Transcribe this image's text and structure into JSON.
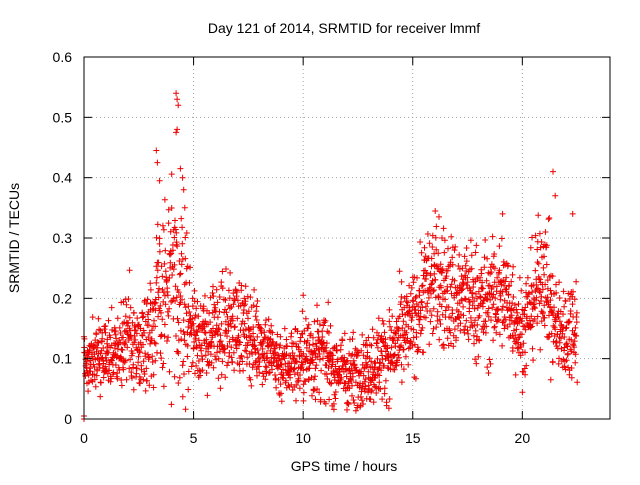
{
  "chart_data": {
    "type": "scatter",
    "title": "Day 121 of 2014, SRMTID for receiver lmmf",
    "xlabel": "GPS time / hours",
    "ylabel": "SRMTID / TECUs",
    "xlim": [
      0,
      24
    ],
    "ylim": [
      0,
      0.6
    ],
    "xticks": [
      0,
      5,
      10,
      15,
      20
    ],
    "xtick_labels": [
      "0",
      "5",
      "10",
      "15",
      "20"
    ],
    "yticks": [
      0,
      0.1,
      0.2,
      0.3,
      0.4,
      0.5,
      0.6
    ],
    "ytick_labels": [
      "0",
      "0.1",
      "0.2",
      "0.3",
      "0.4",
      "0.5",
      "0.6"
    ],
    "grid": true,
    "marker": "plus",
    "color": "#ee0000",
    "series": [
      {
        "name": "SRMTID",
        "trend_x": [
          0,
          0.5,
          1,
          1.5,
          2,
          2.5,
          3,
          3.5,
          4,
          4.5,
          5,
          5.5,
          6,
          6.5,
          7,
          7.5,
          8,
          8.5,
          9,
          9.5,
          10,
          10.5,
          11,
          11.5,
          12,
          12.5,
          13,
          13.5,
          14,
          14.5,
          15,
          15.5,
          16,
          16.5,
          17,
          17.5,
          18,
          18.5,
          19,
          19.5,
          20,
          20.5,
          21,
          21.5,
          22,
          22.5
        ],
        "trend_y": [
          0.1,
          0.1,
          0.105,
          0.11,
          0.13,
          0.12,
          0.15,
          0.2,
          0.21,
          0.19,
          0.15,
          0.13,
          0.14,
          0.15,
          0.16,
          0.14,
          0.13,
          0.11,
          0.09,
          0.095,
          0.1,
          0.11,
          0.1,
          0.085,
          0.08,
          0.08,
          0.085,
          0.1,
          0.11,
          0.13,
          0.16,
          0.21,
          0.23,
          0.21,
          0.2,
          0.2,
          0.19,
          0.19,
          0.21,
          0.19,
          0.14,
          0.2,
          0.25,
          0.15,
          0.14,
          0.17
        ],
        "spread": [
          0.028,
          0.028,
          0.03,
          0.035,
          0.045,
          0.03,
          0.045,
          0.07,
          0.09,
          0.07,
          0.045,
          0.035,
          0.04,
          0.04,
          0.04,
          0.035,
          0.035,
          0.03,
          0.03,
          0.03,
          0.035,
          0.04,
          0.035,
          0.03,
          0.03,
          0.028,
          0.03,
          0.035,
          0.035,
          0.04,
          0.04,
          0.05,
          0.05,
          0.05,
          0.05,
          0.045,
          0.05,
          0.045,
          0.05,
          0.045,
          0.04,
          0.045,
          0.05,
          0.04,
          0.04,
          0.045
        ],
        "highlights": [
          {
            "x": 0.0,
            "y": 0.0
          },
          {
            "x": 0.0,
            "y": 0.005
          },
          {
            "x": 4.2,
            "y": 0.54
          },
          {
            "x": 4.25,
            "y": 0.53
          },
          {
            "x": 4.3,
            "y": 0.52
          },
          {
            "x": 4.2,
            "y": 0.475
          },
          {
            "x": 4.25,
            "y": 0.48
          },
          {
            "x": 3.3,
            "y": 0.445
          },
          {
            "x": 3.35,
            "y": 0.425
          },
          {
            "x": 3.45,
            "y": 0.395
          },
          {
            "x": 4.4,
            "y": 0.415
          },
          {
            "x": 4.5,
            "y": 0.4
          },
          {
            "x": 4.55,
            "y": 0.38
          },
          {
            "x": 4.6,
            "y": 0.35
          },
          {
            "x": 21.4,
            "y": 0.41
          },
          {
            "x": 21.5,
            "y": 0.37
          },
          {
            "x": 12.0,
            "y": 0.015
          },
          {
            "x": 11.4,
            "y": 0.025
          },
          {
            "x": 10.0,
            "y": 0.205
          },
          {
            "x": 16.2,
            "y": 0.335
          },
          {
            "x": 19.1,
            "y": 0.34
          },
          {
            "x": 22.3,
            "y": 0.34
          },
          {
            "x": 21.3,
            "y": 0.065
          }
        ]
      }
    ]
  }
}
